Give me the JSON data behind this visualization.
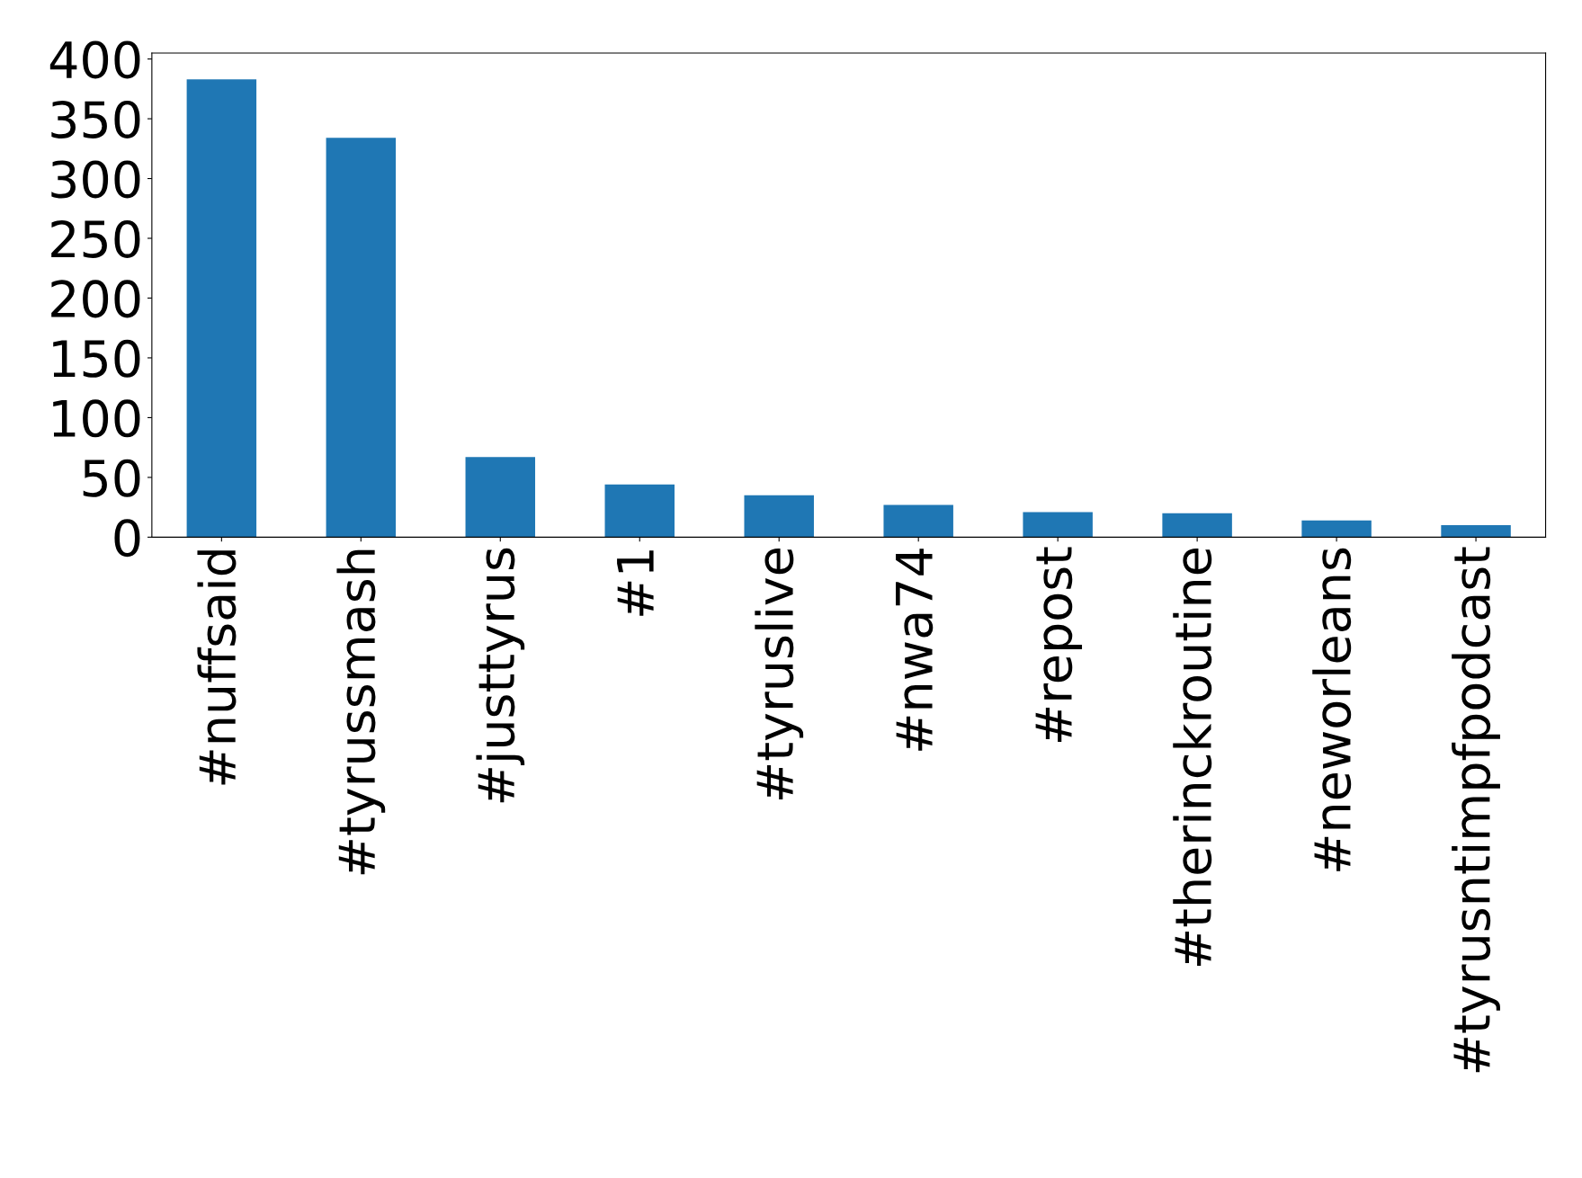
{
  "chart_data": {
    "type": "bar",
    "categories": [
      "#nuffsaid",
      "#tyrussmash",
      "#justtyrus",
      "#1",
      "#tyruslive",
      "#nwa74",
      "#repost",
      "#therinckroutine",
      "#neworleans",
      "#tyrusntimpfpodcast"
    ],
    "values": [
      383,
      334,
      67,
      44,
      35,
      27,
      21,
      20,
      14,
      10
    ],
    "color": "#1f77b4",
    "ylim": [
      0,
      405
    ],
    "yticks": [
      0,
      50,
      100,
      150,
      200,
      250,
      300,
      350,
      400
    ],
    "grid": false
  }
}
